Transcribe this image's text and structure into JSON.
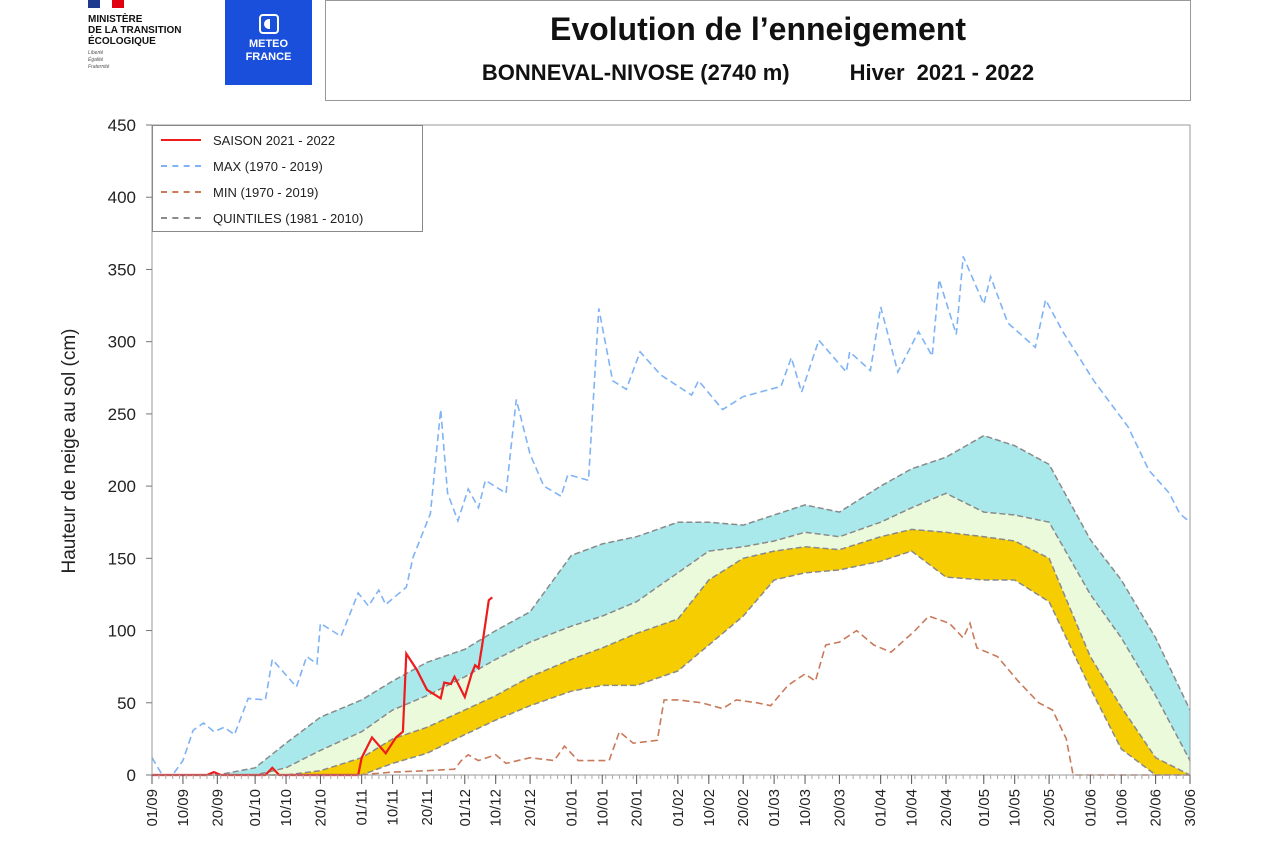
{
  "header": {
    "ministry_logo": {
      "lines": "MINISTÈRE\nDE LA TRANSITION\nÉCOLOGIQUE",
      "motto": "Liberté\nÉgalité\nFraternité"
    },
    "meteo_logo": {
      "line1": "METEO",
      "line2": "FRANCE"
    },
    "title": "Evolution de l’enneigement",
    "station": "BONNEVAL-NIVOSE (2740 m)",
    "hiver_label": "Hiver",
    "season": "2021 - 2022"
  },
  "colors": {
    "season": "#ee1c1c",
    "max": "#7fb3f5",
    "min": "#c97a5a",
    "quintile_line": "#8a8a8a",
    "band_high": "#a9e9eb",
    "band_mid": "#ebfadb",
    "band_low": "#f5cd00"
  },
  "chart_data": {
    "type": "area",
    "title": "Evolution de l’enneigement",
    "xlabel": "",
    "ylabel": "Hauteur de neige au sol (cm)",
    "ylim": [
      0,
      450
    ],
    "xlim_days": [
      0,
      302
    ],
    "yticks": [
      "0",
      "50",
      "100",
      "150",
      "200",
      "250",
      "300",
      "350",
      "400",
      "450"
    ],
    "xticks": [
      {
        "day": 0,
        "label": "01/09"
      },
      {
        "day": 9,
        "label": "10/09"
      },
      {
        "day": 19,
        "label": "20/09"
      },
      {
        "day": 30,
        "label": "01/10"
      },
      {
        "day": 39,
        "label": "10/10"
      },
      {
        "day": 49,
        "label": "20/10"
      },
      {
        "day": 61,
        "label": "01/11"
      },
      {
        "day": 70,
        "label": "10/11"
      },
      {
        "day": 80,
        "label": "20/11"
      },
      {
        "day": 91,
        "label": "01/12"
      },
      {
        "day": 100,
        "label": "10/12"
      },
      {
        "day": 110,
        "label": "20/12"
      },
      {
        "day": 122,
        "label": "01/01"
      },
      {
        "day": 131,
        "label": "10/01"
      },
      {
        "day": 141,
        "label": "20/01"
      },
      {
        "day": 153,
        "label": "01/02"
      },
      {
        "day": 162,
        "label": "10/02"
      },
      {
        "day": 172,
        "label": "20/02"
      },
      {
        "day": 181,
        "label": "01/03"
      },
      {
        "day": 190,
        "label": "10/03"
      },
      {
        "day": 200,
        "label": "20/03"
      },
      {
        "day": 212,
        "label": "01/04"
      },
      {
        "day": 221,
        "label": "10/04"
      },
      {
        "day": 231,
        "label": "20/04"
      },
      {
        "day": 242,
        "label": "01/05"
      },
      {
        "day": 251,
        "label": "10/05"
      },
      {
        "day": 261,
        "label": "20/05"
      },
      {
        "day": 273,
        "label": "01/06"
      },
      {
        "day": 282,
        "label": "10/06"
      },
      {
        "day": 292,
        "label": "20/06"
      },
      {
        "day": 302,
        "label": "30/06"
      }
    ],
    "legend": [
      {
        "key": "season",
        "label": "SAISON 2021 - 2022"
      },
      {
        "key": "max",
        "label": "MAX (1970 - 2019)"
      },
      {
        "key": "min",
        "label": "MIN (1970 - 2019)"
      },
      {
        "key": "quintiles",
        "label": "QUINTILES (1981 - 2010)"
      }
    ],
    "legend_position": "top-left",
    "quintiles_days": [
      0,
      9,
      19,
      30,
      39,
      49,
      61,
      70,
      80,
      91,
      100,
      110,
      122,
      131,
      141,
      153,
      162,
      172,
      181,
      190,
      200,
      212,
      221,
      231,
      242,
      251,
      261,
      273,
      282,
      292,
      302
    ],
    "q80": [
      0,
      0,
      0,
      5,
      22,
      40,
      52,
      65,
      78,
      87,
      100,
      113,
      152,
      160,
      165,
      175,
      175,
      173,
      180,
      187,
      182,
      200,
      212,
      220,
      235,
      228,
      215,
      163,
      135,
      95,
      45
    ],
    "q60": [
      0,
      0,
      0,
      0,
      5,
      17,
      30,
      45,
      55,
      68,
      80,
      92,
      103,
      110,
      120,
      140,
      155,
      158,
      162,
      168,
      165,
      175,
      185,
      195,
      182,
      180,
      175,
      125,
      95,
      55,
      10
    ],
    "q40": [
      0,
      0,
      0,
      0,
      0,
      3,
      12,
      25,
      33,
      45,
      55,
      68,
      80,
      88,
      98,
      108,
      135,
      150,
      155,
      158,
      156,
      165,
      170,
      168,
      165,
      162,
      150,
      82,
      47,
      12,
      0
    ],
    "q20": [
      0,
      0,
      0,
      0,
      0,
      0,
      0,
      8,
      15,
      28,
      38,
      48,
      58,
      62,
      62,
      72,
      90,
      110,
      135,
      140,
      142,
      148,
      155,
      137,
      135,
      135,
      120,
      60,
      18,
      0,
      0
    ],
    "max": [
      [
        0,
        12
      ],
      [
        3,
        0
      ],
      [
        6,
        0
      ],
      [
        9,
        10
      ],
      [
        12,
        31
      ],
      [
        15,
        36
      ],
      [
        18,
        30
      ],
      [
        21,
        33
      ],
      [
        24,
        28
      ],
      [
        28,
        53
      ],
      [
        33,
        52
      ],
      [
        35,
        80
      ],
      [
        42,
        61
      ],
      [
        45,
        82
      ],
      [
        48,
        77
      ],
      [
        49,
        105
      ],
      [
        55,
        96
      ],
      [
        60,
        126
      ],
      [
        63,
        117
      ],
      [
        66,
        128
      ],
      [
        68,
        118
      ],
      [
        74,
        130
      ],
      [
        76,
        151
      ],
      [
        81,
        181
      ],
      [
        84,
        253
      ],
      [
        86,
        195
      ],
      [
        89,
        176
      ],
      [
        92,
        198
      ],
      [
        95,
        185
      ],
      [
        97,
        204
      ],
      [
        103,
        195
      ],
      [
        106,
        260
      ],
      [
        110,
        222
      ],
      [
        114,
        200
      ],
      [
        119,
        193
      ],
      [
        121,
        208
      ],
      [
        127,
        204
      ],
      [
        130,
        323
      ],
      [
        134,
        273
      ],
      [
        138,
        267
      ],
      [
        142,
        293
      ],
      [
        148,
        277
      ],
      [
        157,
        263
      ],
      [
        159,
        273
      ],
      [
        166,
        253
      ],
      [
        172,
        262
      ],
      [
        183,
        269
      ],
      [
        186,
        289
      ],
      [
        189,
        265
      ],
      [
        194,
        301
      ],
      [
        202,
        279
      ],
      [
        203,
        293
      ],
      [
        209,
        280
      ],
      [
        212,
        324
      ],
      [
        217,
        279
      ],
      [
        223,
        307
      ],
      [
        227,
        290
      ],
      [
        229,
        343
      ],
      [
        234,
        305
      ],
      [
        236,
        359
      ],
      [
        242,
        326
      ],
      [
        244,
        345
      ],
      [
        249,
        313
      ],
      [
        257,
        296
      ],
      [
        260,
        329
      ],
      [
        265,
        307
      ],
      [
        274,
        273
      ],
      [
        284,
        241
      ],
      [
        290,
        211
      ],
      [
        296,
        195
      ],
      [
        299,
        181
      ],
      [
        302,
        175
      ]
    ],
    "min": [
      [
        0,
        0
      ],
      [
        60,
        0
      ],
      [
        70,
        2
      ],
      [
        80,
        3
      ],
      [
        88,
        4
      ],
      [
        90,
        10
      ],
      [
        92,
        14
      ],
      [
        95,
        10
      ],
      [
        100,
        14
      ],
      [
        103,
        8
      ],
      [
        110,
        12
      ],
      [
        117,
        10
      ],
      [
        120,
        20
      ],
      [
        124,
        10
      ],
      [
        133,
        10
      ],
      [
        136,
        30
      ],
      [
        140,
        22
      ],
      [
        147,
        24
      ],
      [
        149,
        52
      ],
      [
        153,
        52
      ],
      [
        160,
        50
      ],
      [
        166,
        46
      ],
      [
        170,
        52
      ],
      [
        176,
        50
      ],
      [
        180,
        48
      ],
      [
        185,
        62
      ],
      [
        190,
        70
      ],
      [
        193,
        65
      ],
      [
        196,
        90
      ],
      [
        200,
        92
      ],
      [
        205,
        100
      ],
      [
        210,
        90
      ],
      [
        215,
        85
      ],
      [
        222,
        100
      ],
      [
        226,
        110
      ],
      [
        232,
        105
      ],
      [
        236,
        95
      ],
      [
        238,
        105
      ],
      [
        240,
        88
      ],
      [
        246,
        82
      ],
      [
        252,
        65
      ],
      [
        258,
        50
      ],
      [
        262,
        45
      ],
      [
        264,
        35
      ],
      [
        266,
        25
      ],
      [
        268,
        0
      ],
      [
        302,
        0
      ]
    ],
    "season": [
      [
        0,
        0
      ],
      [
        16,
        0
      ],
      [
        18,
        2
      ],
      [
        20,
        0
      ],
      [
        33,
        0
      ],
      [
        35,
        5
      ],
      [
        37,
        0
      ],
      [
        60,
        0
      ],
      [
        61,
        12
      ],
      [
        64,
        26
      ],
      [
        68,
        15
      ],
      [
        71,
        26
      ],
      [
        73,
        30
      ],
      [
        74,
        84
      ],
      [
        77,
        73
      ],
      [
        80,
        59
      ],
      [
        84,
        53
      ],
      [
        85,
        64
      ],
      [
        87,
        63
      ],
      [
        88,
        68
      ],
      [
        91,
        54
      ],
      [
        93,
        70
      ],
      [
        94,
        76
      ],
      [
        95,
        74
      ],
      [
        96,
        89
      ],
      [
        98,
        121
      ],
      [
        99,
        123
      ]
    ]
  }
}
